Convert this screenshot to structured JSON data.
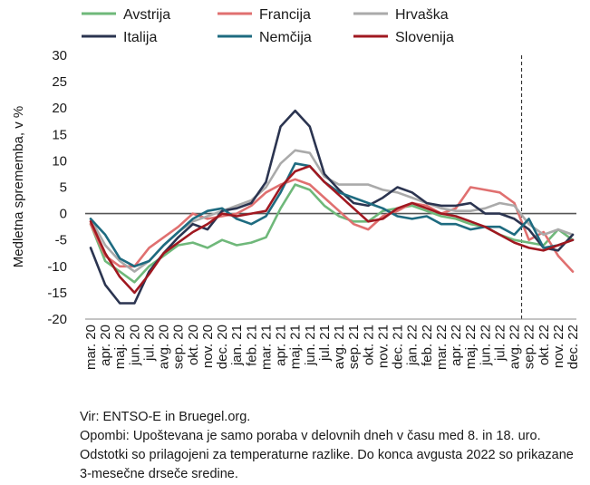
{
  "chart_data": {
    "type": "line",
    "ylabel": "Medletna sprememba, v %",
    "ylim": [
      -20,
      30
    ],
    "yticks": [
      -20,
      -15,
      -10,
      -5,
      0,
      5,
      10,
      15,
      20,
      25,
      30
    ],
    "categories": [
      "mar. 20",
      "apr. 20",
      "maj. 20",
      "jun. 20",
      "jul. 20",
      "avg. 20",
      "sep. 20",
      "okt. 20",
      "nov. 20",
      "dec. 20",
      "jan. 21",
      "feb. 21",
      "mar. 21",
      "apr. 21",
      "maj. 21",
      "jun. 21",
      "jul. 21",
      "avg. 21",
      "sep. 21",
      "okt. 21",
      "nov. 21",
      "dec. 21",
      "jan. 22",
      "feb. 22",
      "mar. 22",
      "apr. 22",
      "maj. 22",
      "jun. 22",
      "jul. 22",
      "avg. 22",
      "sep. 22",
      "okt. 22",
      "nov. 22",
      "dec. 22"
    ],
    "legend_position": "top",
    "vline_after": "avg. 22",
    "series": [
      {
        "name": "Avstrija",
        "color": "#6fb87a",
        "values": [
          -2,
          -9,
          -11,
          -13,
          -10,
          -8,
          -6,
          -5.5,
          -6.5,
          -5,
          -6,
          -5.5,
          -4.5,
          1,
          5.5,
          4.5,
          1.5,
          -0.5,
          -1.5,
          -1.5,
          0.5,
          1,
          1.5,
          0.5,
          -0.5,
          -1,
          -2,
          -2.5,
          -4,
          -5,
          -5.5,
          -6,
          -3,
          -5
        ]
      },
      {
        "name": "Francija",
        "color": "#e07070",
        "values": [
          -2,
          -8,
          -10,
          -10,
          -6.5,
          -4.5,
          -2.5,
          0,
          -1,
          -0.5,
          0,
          1.5,
          4,
          5.5,
          6.5,
          5.5,
          3,
          0.5,
          -2,
          -3,
          -0.5,
          0.5,
          2,
          1.5,
          0,
          1,
          5,
          4.5,
          4,
          2,
          -5,
          -3.5,
          -8,
          -11
        ]
      },
      {
        "name": "Hrvaška",
        "color": "#aaaaaa",
        "values": [
          -1,
          -6,
          -9,
          -11,
          -9,
          -6,
          -3.5,
          -1.5,
          -0.5,
          0.5,
          1.5,
          2.5,
          5,
          9.5,
          12,
          11.5,
          7,
          5.5,
          5.5,
          5.5,
          4.5,
          4,
          3,
          2,
          1,
          0.5,
          0.5,
          1,
          2,
          1.5,
          -2,
          -4,
          -3,
          -4
        ]
      },
      {
        "name": "Italija",
        "color": "#2b3450",
        "values": [
          -6.5,
          -13.5,
          -17,
          -17,
          -11,
          -7.5,
          -4.5,
          -2,
          -3,
          0.5,
          1,
          2,
          6,
          16.5,
          19.5,
          16.5,
          7.5,
          4.5,
          2,
          1.5,
          3,
          5,
          4,
          2,
          1.5,
          1.5,
          2,
          0,
          0,
          -1,
          -3,
          -6.5,
          -7,
          -4
        ]
      },
      {
        "name": "Nemčija",
        "color": "#1e6b80",
        "values": [
          -1,
          -4,
          -8.5,
          -10,
          -9,
          -6,
          -3.5,
          -1,
          0.5,
          1,
          -1,
          -2,
          -0.5,
          4,
          9.5,
          9,
          6,
          4,
          3,
          2,
          1,
          -0.5,
          -1,
          -0.5,
          -2,
          -2,
          -3,
          -2.5,
          -2.5,
          -4,
          -1,
          -6.5,
          -6,
          -5
        ]
      },
      {
        "name": "Slovenija",
        "color": "#a01820",
        "values": [
          -1.5,
          -7.5,
          -12,
          -15,
          -11.5,
          -7.5,
          -5.5,
          -3.5,
          -2,
          0,
          -0.5,
          0,
          0.5,
          5,
          8,
          9,
          6,
          3.5,
          1,
          -1.5,
          -1,
          1,
          2,
          1,
          0,
          -0.5,
          -1.5,
          -2.5,
          -4,
          -5.5,
          -6.5,
          -7,
          -6,
          -5
        ]
      }
    ]
  },
  "notes": {
    "source": "Vir: ENTSO-E in Bruegel.org.",
    "remark": "Opombi: Upoštevana je samo poraba v delovnih dneh v času med 8. in 18. uro. Odstotki so prilagojeni za temperaturne razlike. Do konca avgusta 2022 so prikazane 3-mesečne drseče sredine."
  }
}
